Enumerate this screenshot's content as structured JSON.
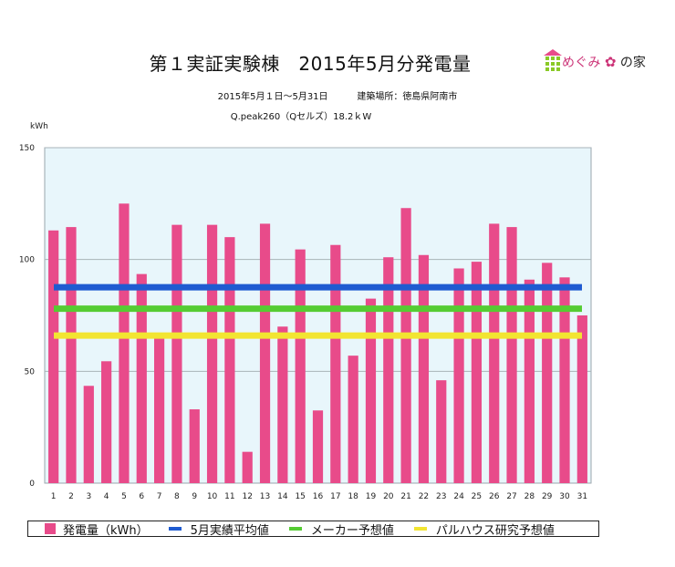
{
  "header": {
    "title": "第１実証実験棟　2015年5月分発電量",
    "period": "2015年5月１日〜5月31日",
    "location": "建築場所：徳島県阿南市",
    "system": "Q.peak260（Qセルズ）18.2ｋW"
  },
  "logo": {
    "text_pre": "めぐみ",
    "text_post": "の家"
  },
  "chart_data": {
    "type": "bar",
    "title": "第１実証実験棟　2015年5月分発電量",
    "ylabel": "kWh",
    "ylim": [
      0,
      150
    ],
    "yticks": [
      0,
      50,
      100,
      150
    ],
    "grid": true,
    "legend_position": "bottom",
    "categories": [
      "1",
      "2",
      "3",
      "4",
      "5",
      "6",
      "7",
      "8",
      "9",
      "10",
      "11",
      "12",
      "13",
      "14",
      "15",
      "16",
      "17",
      "18",
      "19",
      "20",
      "21",
      "22",
      "23",
      "24",
      "25",
      "26",
      "27",
      "28",
      "29",
      "30",
      "31"
    ],
    "series": [
      {
        "name": "発電量（kWh）",
        "type": "bar",
        "color": "#e84b8a",
        "values": [
          113,
          114.5,
          43.5,
          54.5,
          125,
          93.5,
          65,
          115.5,
          33,
          115.5,
          110,
          14,
          116,
          70,
          104.5,
          32.5,
          106.5,
          57,
          82.5,
          101,
          123,
          102,
          46,
          96,
          99,
          116,
          114.5,
          91,
          98.5,
          92,
          75
        ]
      },
      {
        "name": "5月実績平均値",
        "type": "line",
        "color": "#1f5bd1",
        "value": 87.6
      },
      {
        "name": "メーカー予想値",
        "type": "line",
        "color": "#55cc33",
        "value": 78
      },
      {
        "name": "パルハウス研究予想値",
        "type": "line",
        "color": "#f2e531",
        "value": 66
      }
    ]
  }
}
